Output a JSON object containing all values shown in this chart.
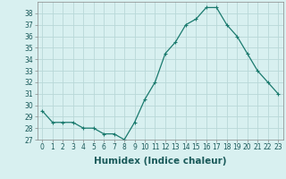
{
  "x": [
    0,
    1,
    2,
    3,
    4,
    5,
    6,
    7,
    8,
    9,
    10,
    11,
    12,
    13,
    14,
    15,
    16,
    17,
    18,
    19,
    20,
    21,
    22,
    23
  ],
  "y": [
    29.5,
    28.5,
    28.5,
    28.5,
    28.0,
    28.0,
    27.5,
    27.5,
    27.0,
    28.5,
    30.5,
    32.0,
    34.5,
    35.5,
    37.0,
    37.5,
    38.5,
    38.5,
    37.0,
    36.0,
    34.5,
    33.0,
    32.0,
    31.0
  ],
  "line_color": "#1a7a6e",
  "marker": "+",
  "marker_size": 3,
  "marker_lw": 0.8,
  "line_width": 0.9,
  "bg_color": "#d8f0f0",
  "grid_color": "#b8d8d8",
  "xlabel": "Humidex (Indice chaleur)",
  "ylim": [
    27,
    39
  ],
  "xlim": [
    -0.5,
    23.5
  ],
  "yticks": [
    27,
    28,
    29,
    30,
    31,
    32,
    33,
    34,
    35,
    36,
    37,
    38
  ],
  "xtick_labels": [
    "0",
    "1",
    "2",
    "3",
    "4",
    "5",
    "6",
    "7",
    "8",
    "9",
    "10",
    "11",
    "12",
    "13",
    "14",
    "15",
    "16",
    "17",
    "18",
    "19",
    "20",
    "21",
    "22",
    "23"
  ],
  "tick_fontsize": 5.5,
  "xlabel_fontsize": 7.5
}
